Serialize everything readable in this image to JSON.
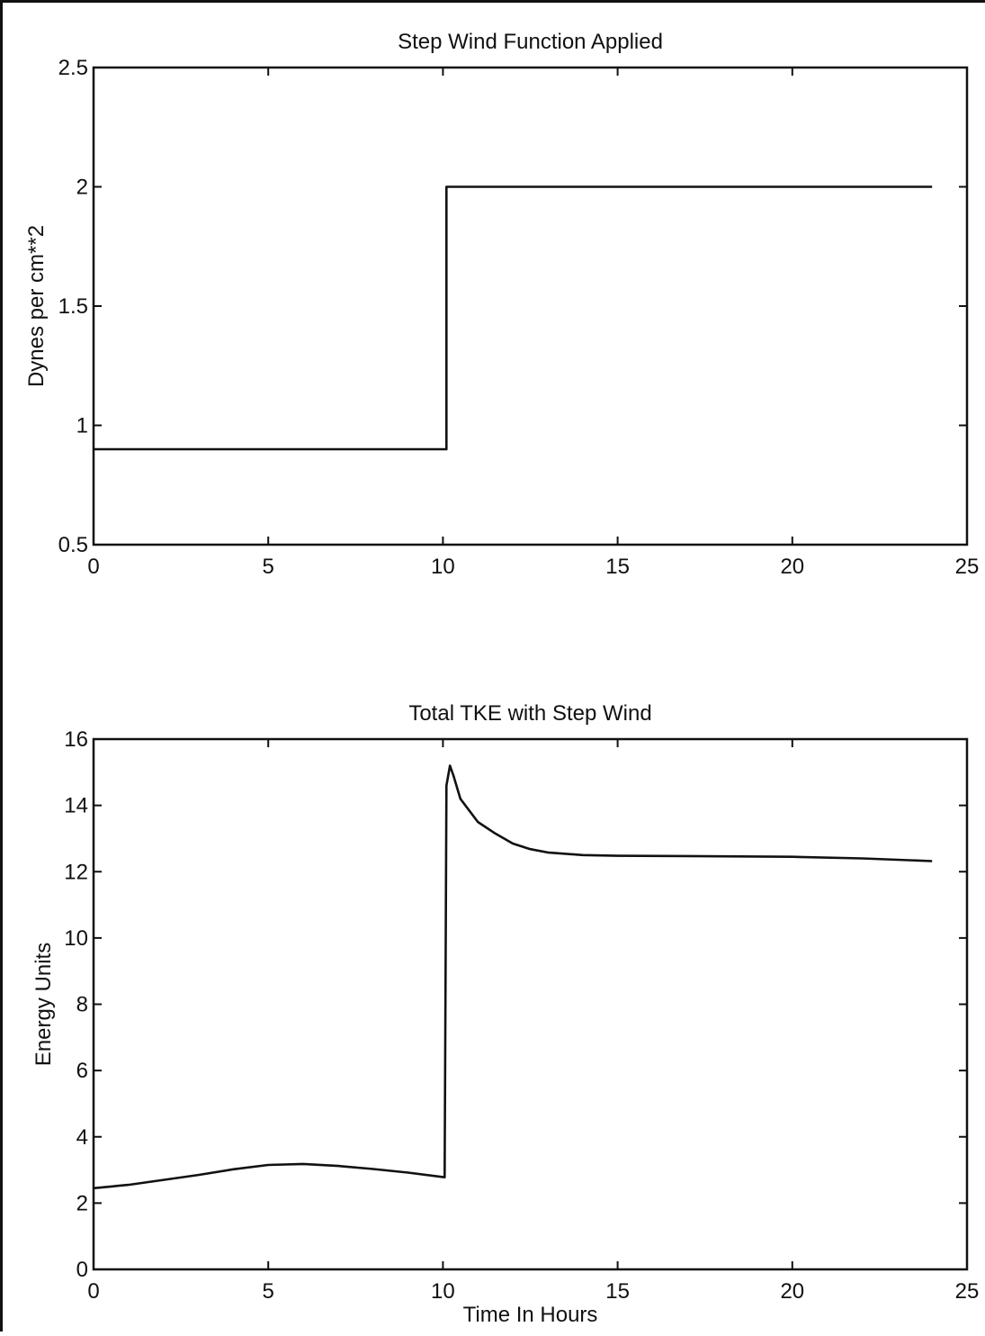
{
  "chart_data": [
    {
      "type": "line",
      "title": "Step Wind Function Applied",
      "xlabel": "",
      "ylabel": "Dynes per cm**2",
      "xlim": [
        0,
        25
      ],
      "ylim": [
        0.5,
        2.5
      ],
      "xticks": [
        "0",
        "5",
        "10",
        "15",
        "20",
        "25"
      ],
      "yticks": [
        "0.5",
        "1",
        "1.5",
        "2",
        "2.5"
      ],
      "grid": false,
      "series": [
        {
          "x": [
            0,
            10.1,
            10.1,
            24
          ],
          "y": [
            0.9,
            0.9,
            2.0,
            2.0
          ]
        }
      ]
    },
    {
      "type": "line",
      "title": "Total TKE with Step Wind",
      "xlabel": "Time In Hours",
      "ylabel": "Energy Units",
      "xlim": [
        0,
        25
      ],
      "ylim": [
        0,
        16
      ],
      "xticks": [
        "0",
        "5",
        "10",
        "15",
        "20",
        "25"
      ],
      "yticks": [
        "0",
        "2",
        "4",
        "6",
        "8",
        "10",
        "12",
        "14",
        "16"
      ],
      "grid": false,
      "series": [
        {
          "x": [
            0,
            1,
            2,
            3,
            4,
            5,
            6,
            7,
            8,
            9,
            10.05,
            10.1,
            10.2,
            10.3,
            10.5,
            11,
            11.5,
            12,
            12.5,
            13,
            14,
            15,
            17,
            20,
            22,
            24
          ],
          "y": [
            2.45,
            2.55,
            2.7,
            2.85,
            3.02,
            3.15,
            3.18,
            3.12,
            3.03,
            2.92,
            2.78,
            14.6,
            15.2,
            14.9,
            14.2,
            13.5,
            13.15,
            12.85,
            12.68,
            12.58,
            12.5,
            12.48,
            12.47,
            12.45,
            12.4,
            12.32
          ]
        }
      ]
    }
  ]
}
